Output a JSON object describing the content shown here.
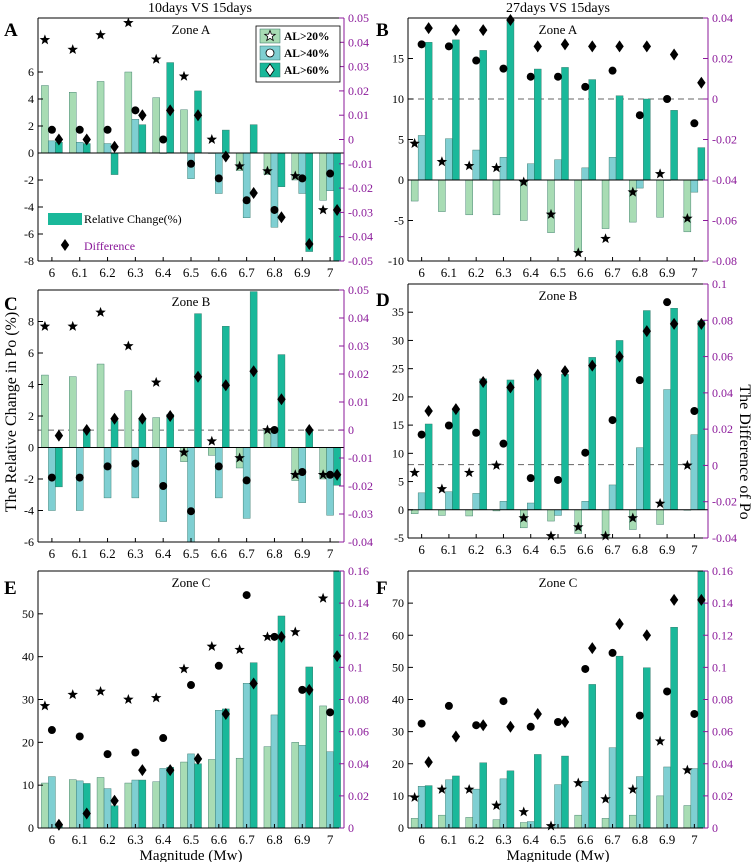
{
  "figure": {
    "top_titles": [
      "10days VS 15days",
      "27days VS 15days"
    ],
    "y_label_left": "The Relative Change in Po (%)",
    "y_label_right": "The Difference of Po",
    "colors": {
      "al20": "#a8dcb4",
      "al40": "#7fcfd2",
      "al60": "#1ab89a",
      "secondary": "#8b1a9a",
      "marker": "#000000"
    }
  },
  "legend_a": {
    "entries": [
      "AL>20%",
      "AL>40%",
      "AL>60%"
    ],
    "relative_change": "Relative Change(%)",
    "difference": "Difference"
  },
  "chart_data": [
    {
      "panel": "A",
      "zone": "Zone A",
      "type": "bar",
      "categories": [
        "6",
        "6.1",
        "6.2",
        "6.3",
        "6.4",
        "6.5",
        "6.6",
        "6.7",
        "6.8",
        "6.9",
        "7"
      ],
      "ylim": [
        -8,
        10
      ],
      "yticks": [
        -8,
        -6,
        -4,
        -2,
        0,
        2,
        4,
        6
      ],
      "y2lim": [
        -0.05,
        0.05
      ],
      "y2ticks": [
        -0.05,
        -0.04,
        -0.03,
        -0.02,
        -0.01,
        0,
        0.01,
        0.02,
        0.03,
        0.04,
        0.05
      ],
      "y2ticklabels": [
        "-0.05",
        "-0.04",
        "-0.03",
        "-0.02",
        "-0.01",
        "0",
        "0.01",
        "0.02",
        "0.03",
        "0.04",
        "0.05"
      ],
      "series": [
        {
          "name": "AL>20%",
          "values": [
            5.0,
            4.5,
            5.3,
            6.0,
            4.1,
            3.2,
            0.0,
            -1.3,
            -1.6,
            -2.0,
            -3.5
          ]
        },
        {
          "name": "AL>40%",
          "values": [
            0.9,
            0.8,
            0.7,
            2.5,
            0.0,
            -1.9,
            -3.0,
            -4.8,
            -5.5,
            -3.0,
            -2.8
          ]
        },
        {
          "name": "AL>60%",
          "values": [
            0.8,
            0.7,
            -1.6,
            2.1,
            6.7,
            4.6,
            1.7,
            2.1,
            -2.5,
            -7.3,
            -8.0
          ]
        }
      ],
      "difference_series": [
        {
          "name": "AL>20%",
          "marker": "star",
          "values": [
            0.041,
            0.037,
            0.043,
            0.048,
            0.033,
            0.026,
            0.0,
            -0.011,
            -0.013,
            -0.015,
            -0.029
          ]
        },
        {
          "name": "AL>40%",
          "marker": "circle",
          "values": [
            0.004,
            0.004,
            0.004,
            0.012,
            0.0,
            -0.01,
            -0.016,
            -0.025,
            -0.029,
            -0.016,
            -0.014
          ]
        },
        {
          "name": "AL>60%",
          "marker": "diamond",
          "values": [
            0.0,
            0.0,
            -0.003,
            0.01,
            0.012,
            0.01,
            -0.007,
            -0.022,
            -0.032,
            -0.043,
            -0.029
          ]
        }
      ]
    },
    {
      "panel": "B",
      "zone": "Zone A",
      "type": "bar",
      "categories": [
        "6",
        "6.1",
        "6.2",
        "6.3",
        "6.4",
        "6.5",
        "6.6",
        "6.7",
        "6.8",
        "6.9",
        "7"
      ],
      "ylim": [
        -10,
        20
      ],
      "yticks": [
        -10,
        -5,
        0,
        5,
        10,
        15
      ],
      "y2lim": [
        -0.08,
        0.04
      ],
      "y2ticks": [
        -0.08,
        -0.06,
        -0.04,
        -0.02,
        0,
        0.02,
        0.04
      ],
      "y2ticklabels": [
        "-0.08",
        "-0.06",
        "-0.04",
        "-0.02",
        "0",
        "0.02",
        "0.04"
      ],
      "dashed_line_y": 10,
      "series": [
        {
          "name": "AL>20%",
          "values": [
            -2.6,
            -3.9,
            -4.3,
            -4.3,
            -5.0,
            -6.5,
            -8.8,
            -6.0,
            -5.2,
            -4.6,
            -6.4
          ]
        },
        {
          "name": "AL>40%",
          "values": [
            5.5,
            5.1,
            3.7,
            2.8,
            2.0,
            2.5,
            1.5,
            2.8,
            -1.0,
            0.0,
            -1.5
          ]
        },
        {
          "name": "AL>60%",
          "values": [
            17.0,
            17.3,
            16.0,
            19.8,
            13.7,
            13.9,
            12.4,
            10.4,
            10.0,
            8.6,
            4.0
          ]
        }
      ],
      "difference_series": [
        {
          "name": "AL>20%",
          "marker": "star",
          "values": [
            -0.022,
            -0.031,
            -0.033,
            -0.034,
            -0.041,
            -0.057,
            -0.076,
            -0.069,
            -0.046,
            -0.037,
            -0.059
          ]
        },
        {
          "name": "AL>40%",
          "marker": "circle",
          "values": [
            0.027,
            0.026,
            0.019,
            0.015,
            0.011,
            0.011,
            0.006,
            0.014,
            -0.008,
            0.0,
            -0.012
          ]
        },
        {
          "name": "AL>60%",
          "marker": "diamond",
          "values": [
            0.035,
            0.034,
            0.034,
            0.04,
            0.026,
            0.027,
            0.026,
            0.026,
            0.026,
            0.022,
            0.008
          ]
        }
      ]
    },
    {
      "panel": "C",
      "zone": "Zone B",
      "type": "bar",
      "categories": [
        "6",
        "6.1",
        "6.2",
        "6.3",
        "6.4",
        "6.5",
        "6.6",
        "6.7",
        "6.8",
        "6.9",
        "7"
      ],
      "ylim": [
        -6,
        10
      ],
      "yticks": [
        -6,
        -4,
        -2,
        0,
        2,
        4,
        6,
        8
      ],
      "y2lim": [
        -0.04,
        0.05
      ],
      "y2ticks": [
        -0.04,
        -0.03,
        -0.02,
        -0.01,
        0,
        0.01,
        0.02,
        0.03,
        0.04,
        0.05
      ],
      "y2ticklabels": [
        "-0.04",
        "-0.03",
        "-0.02",
        "-0.01",
        "0",
        "0.01",
        "0.02",
        "0.03",
        "0.04",
        "0.05"
      ],
      "dashed_line_y": 1.1,
      "series": [
        {
          "name": "AL>20%",
          "values": [
            4.6,
            4.5,
            5.3,
            3.6,
            1.9,
            -0.9,
            -0.5,
            -1.3,
            1.1,
            -2.1,
            -2.0
          ]
        },
        {
          "name": "AL>40%",
          "values": [
            -4.0,
            -4.0,
            -3.2,
            -3.2,
            -4.7,
            -6.0,
            -3.2,
            -4.5,
            1.1,
            -3.5,
            -4.3
          ]
        },
        {
          "name": "AL>60%",
          "values": [
            -2.5,
            1.1,
            1.7,
            1.8,
            2.1,
            8.5,
            7.7,
            9.9,
            5.9,
            1.1,
            -2.4
          ]
        }
      ],
      "difference_series": [
        {
          "name": "AL>20%",
          "marker": "star",
          "values": [
            0.037,
            0.037,
            0.042,
            0.03,
            0.017,
            -0.008,
            -0.004,
            -0.01,
            0.0,
            -0.016,
            -0.016
          ]
        },
        {
          "name": "AL>40%",
          "marker": "circle",
          "values": [
            -0.017,
            -0.017,
            -0.013,
            -0.012,
            -0.02,
            -0.029,
            -0.013,
            -0.018,
            0.0,
            -0.015,
            -0.016
          ]
        },
        {
          "name": "AL>60%",
          "marker": "diamond",
          "values": [
            -0.002,
            0.0,
            0.004,
            0.004,
            0.005,
            0.019,
            0.016,
            0.021,
            0.011,
            0.0,
            -0.016
          ]
        }
      ]
    },
    {
      "panel": "D",
      "zone": "Zone B",
      "type": "bar",
      "categories": [
        "6",
        "6.1",
        "6.2",
        "6.3",
        "6.4",
        "6.5",
        "6.6",
        "6.7",
        "6.8",
        "6.9",
        "7"
      ],
      "ylim": [
        -5,
        40
      ],
      "yticks": [
        -5,
        0,
        5,
        10,
        15,
        20,
        25,
        30,
        35
      ],
      "y2lim": [
        -0.04,
        0.1
      ],
      "y2ticks": [
        -0.04,
        -0.02,
        0,
        0.02,
        0.04,
        0.06,
        0.08,
        0.1
      ],
      "y2ticklabels": [
        "-0.04",
        "-0.02",
        "0",
        "0.02",
        "0.04",
        "0.06",
        "0.08",
        "0.1"
      ],
      "dashed_line_y": 8,
      "series": [
        {
          "name": "AL>20%",
          "values": [
            -0.7,
            -1.0,
            -1.1,
            -0.2,
            -3.2,
            -2.0,
            -4.2,
            -5.1,
            -3.5,
            -2.6,
            -0.1
          ]
        },
        {
          "name": "AL>40%",
          "values": [
            3.0,
            3.2,
            2.9,
            1.5,
            1.2,
            -1.0,
            1.5,
            4.4,
            11.0,
            21.3,
            13.3
          ]
        },
        {
          "name": "AL>60%",
          "values": [
            15.2,
            17.7,
            23.2,
            23.0,
            24.0,
            24.0,
            27.0,
            30.0,
            35.3,
            35.7,
            33.5
          ]
        }
      ],
      "difference_series": [
        {
          "name": "AL>20%",
          "marker": "star",
          "values": [
            -0.004,
            -0.013,
            -0.004,
            0.0,
            -0.029,
            -0.045,
            -0.034,
            -0.042,
            -0.029,
            -0.021,
            0.0
          ]
        },
        {
          "name": "AL>40%",
          "marker": "circle",
          "values": [
            0.017,
            0.022,
            0.018,
            0.012,
            -0.007,
            -0.008,
            0.007,
            0.025,
            0.047,
            0.09,
            0.03
          ]
        },
        {
          "name": "AL>60%",
          "marker": "diamond",
          "values": [
            0.03,
            0.031,
            0.046,
            0.043,
            0.05,
            0.052,
            0.055,
            0.06,
            0.074,
            0.078,
            0.078
          ]
        }
      ]
    },
    {
      "panel": "E",
      "zone": "Zone C",
      "type": "bar",
      "categories": [
        "6",
        "6.1",
        "6.2",
        "6.3",
        "6.4",
        "6.5",
        "6.6",
        "6.7",
        "6.8",
        "6.9",
        "7"
      ],
      "xlabel": "Magnitude (Mw)",
      "ylim": [
        0,
        60
      ],
      "yticks": [
        0,
        10,
        20,
        30,
        40,
        50
      ],
      "y2lim": [
        0,
        0.16
      ],
      "y2ticks": [
        0,
        0.02,
        0.04,
        0.06,
        0.08,
        0.1,
        0.12,
        0.14,
        0.16
      ],
      "y2ticklabels": [
        "0",
        "0.02",
        "0.04",
        "0.06",
        "0.08",
        "0.1",
        "0.12",
        "0.14",
        "0.16"
      ],
      "series": [
        {
          "name": "AL>20%",
          "values": [
            10.5,
            11.3,
            11.8,
            10.5,
            10.8,
            15.4,
            16.0,
            16.3,
            19.0,
            20.0,
            28.5
          ]
        },
        {
          "name": "AL>40%",
          "values": [
            12.0,
            11.0,
            9.2,
            11.2,
            13.9,
            17.3,
            27.5,
            33.8,
            26.4,
            19.3,
            17.8
          ]
        },
        {
          "name": "AL>60%",
          "values": [
            0.5,
            10.4,
            5.2,
            11.2,
            14.2,
            15.0,
            27.8,
            38.6,
            49.5,
            37.6,
            60.0
          ]
        }
      ],
      "difference_series": [
        {
          "name": "AL>20%",
          "marker": "star",
          "values": [
            0.076,
            0.083,
            0.085,
            0.08,
            0.081,
            0.099,
            0.113,
            0.111,
            0.119,
            0.122,
            0.143
          ]
        },
        {
          "name": "AL>40%",
          "marker": "circle",
          "values": [
            0.061,
            0.057,
            0.046,
            0.047,
            0.056,
            0.089,
            0.101,
            0.145,
            0.119,
            0.086,
            0.072
          ]
        },
        {
          "name": "AL>60%",
          "marker": "diamond",
          "values": [
            0.002,
            0.009,
            0.017,
            0.036,
            0.036,
            0.043,
            0.071,
            0.09,
            0.119,
            0.086,
            0.107
          ]
        }
      ]
    },
    {
      "panel": "F",
      "zone": "Zone C",
      "type": "bar",
      "categories": [
        "6",
        "6.1",
        "6.2",
        "6.3",
        "6.4",
        "6.5",
        "6.6",
        "6.7",
        "6.8",
        "6.9",
        "7"
      ],
      "xlabel": "Magnitude (Mw)",
      "ylim": [
        0,
        80
      ],
      "yticks": [
        0,
        10,
        20,
        30,
        40,
        50,
        60,
        70
      ],
      "y2lim": [
        0,
        0.16
      ],
      "y2ticks": [
        0,
        0.02,
        0.04,
        0.06,
        0.08,
        0.1,
        0.12,
        0.14,
        0.16
      ],
      "y2ticklabels": [
        "0",
        "0.02",
        "0.04",
        "0.06",
        "0.08",
        "0.1",
        "0.12",
        "0.14",
        "0.16"
      ],
      "series": [
        {
          "name": "AL>20%",
          "values": [
            3.0,
            4.0,
            3.3,
            2.6,
            1.7,
            0.2,
            4.0,
            3.0,
            4.0,
            10.0,
            7.0
          ]
        },
        {
          "name": "AL>40%",
          "values": [
            13.0,
            15.0,
            12.1,
            15.3,
            2.0,
            13.5,
            14.5,
            25.0,
            16.0,
            19.0,
            18.5
          ]
        },
        {
          "name": "AL>60%",
          "values": [
            13.2,
            16.2,
            20.3,
            17.8,
            22.9,
            22.4,
            44.7,
            53.5,
            49.9,
            62.5,
            80.0
          ]
        }
      ],
      "difference_series": [
        {
          "name": "AL>20%",
          "marker": "star",
          "values": [
            0.019,
            0.024,
            0.024,
            0.014,
            0.01,
            0.0,
            0.028,
            0.018,
            0.024,
            0.054,
            0.036
          ]
        },
        {
          "name": "AL>40%",
          "marker": "circle",
          "values": [
            0.065,
            0.076,
            0.064,
            0.079,
            0.063,
            0.066,
            0.099,
            0.109,
            0.07,
            0.085,
            0.071
          ]
        },
        {
          "name": "AL>60%",
          "marker": "diamond",
          "values": [
            0.041,
            0.057,
            0.064,
            0.063,
            0.071,
            0.066,
            0.112,
            0.127,
            0.12,
            0.142,
            0.142
          ]
        }
      ]
    }
  ]
}
